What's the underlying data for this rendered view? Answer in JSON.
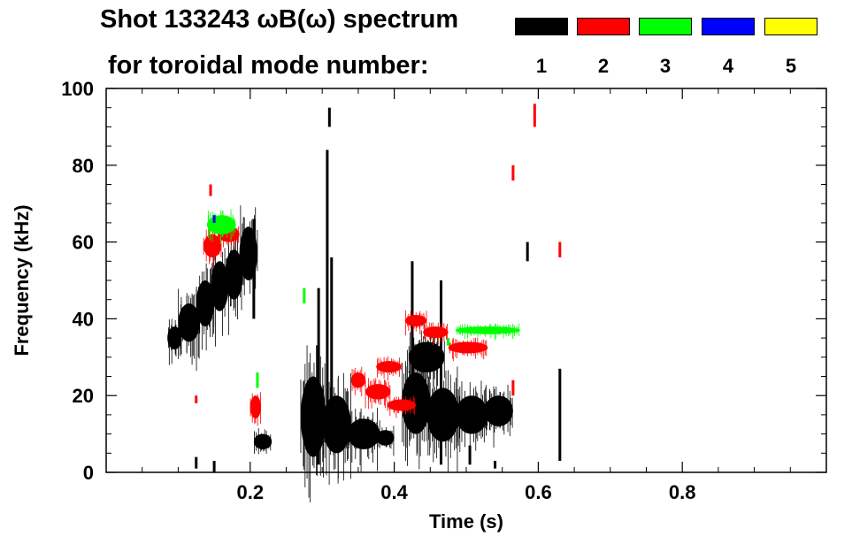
{
  "chart_data": {
    "type": "scatter",
    "title_line1": "Shot 133243 ωB(ω) spectrum",
    "title_line2": "for toroidal mode number:",
    "xlabel": "Time (s)",
    "ylabel": "Frequency (kHz)",
    "xlim": [
      0.0,
      1.0
    ],
    "ylim": [
      0,
      100
    ],
    "x_ticks": [
      0.2,
      0.4,
      0.6,
      0.8
    ],
    "x_tick_labels": [
      "0.2",
      "0.4",
      "0.6",
      "0.8"
    ],
    "y_ticks": [
      0,
      20,
      40,
      60,
      80,
      100
    ],
    "y_tick_labels": [
      "0",
      "20",
      "40",
      "60",
      "80",
      "100"
    ],
    "legend": [
      {
        "label": "1",
        "color": "#000000"
      },
      {
        "label": "2",
        "color": "#ff0000"
      },
      {
        "label": "3",
        "color": "#00ff00"
      },
      {
        "label": "4",
        "color": "#0000ff"
      },
      {
        "label": "5",
        "color": "#ffff00"
      }
    ],
    "series": [
      {
        "name": "n=1",
        "color": "#000000",
        "blobs": [
          {
            "t": [
              0.085,
              0.105
            ],
            "f": [
              32,
              38
            ]
          },
          {
            "t": [
              0.1,
              0.13
            ],
            "f": [
              34,
              44
            ]
          },
          {
            "t": [
              0.125,
              0.15
            ],
            "f": [
              38,
              50
            ]
          },
          {
            "t": [
              0.145,
              0.17
            ],
            "f": [
              42,
              55
            ]
          },
          {
            "t": [
              0.165,
              0.19
            ],
            "f": [
              45,
              58
            ]
          },
          {
            "t": [
              0.185,
              0.21
            ],
            "f": [
              50,
              64
            ]
          },
          {
            "t": [
              0.205,
              0.23
            ],
            "f": [
              6,
              10
            ]
          },
          {
            "t": [
              0.27,
              0.305
            ],
            "f": [
              4,
              25
            ]
          },
          {
            "t": [
              0.3,
              0.34
            ],
            "f": [
              5,
              20
            ]
          },
          {
            "t": [
              0.335,
              0.38
            ],
            "f": [
              6,
              14
            ]
          },
          {
            "t": [
              0.375,
              0.4
            ],
            "f": [
              7,
              11
            ]
          },
          {
            "t": [
              0.41,
              0.45
            ],
            "f": [
              10,
              26
            ]
          },
          {
            "t": [
              0.445,
              0.49
            ],
            "f": [
              8,
              22
            ]
          },
          {
            "t": [
              0.485,
              0.53
            ],
            "f": [
              10,
              20
            ]
          },
          {
            "t": [
              0.525,
              0.565
            ],
            "f": [
              12,
              20
            ]
          },
          {
            "t": [
              0.42,
              0.47
            ],
            "f": [
              26,
              34
            ]
          }
        ],
        "spikes": [
          {
            "t": 0.205,
            "f": [
              40,
              66
            ]
          },
          {
            "t": 0.295,
            "f": [
              2,
              48
            ]
          },
          {
            "t": 0.307,
            "f": [
              8,
              84
            ]
          },
          {
            "t": 0.313,
            "f": [
              18,
              56
            ]
          },
          {
            "t": 0.31,
            "f": [
              90,
              95
            ]
          },
          {
            "t": 0.425,
            "f": [
              20,
              55
            ]
          },
          {
            "t": 0.465,
            "f": [
              2,
              50
            ]
          },
          {
            "t": 0.585,
            "f": [
              55,
              60
            ]
          },
          {
            "t": 0.63,
            "f": [
              3,
              27
            ]
          },
          {
            "t": 0.125,
            "f": [
              1,
              4
            ]
          },
          {
            "t": 0.15,
            "f": [
              0,
              3
            ]
          },
          {
            "t": 0.505,
            "f": [
              2,
              7
            ]
          },
          {
            "t": 0.54,
            "f": [
              1,
              3
            ]
          }
        ]
      },
      {
        "name": "n=2",
        "color": "#ff0000",
        "blobs": [
          {
            "t": [
              0.135,
              0.16
            ],
            "f": [
              56,
              62
            ]
          },
          {
            "t": [
              0.155,
              0.185
            ],
            "f": [
              60,
              64
            ]
          },
          {
            "t": [
              0.2,
              0.215
            ],
            "f": [
              14,
              20
            ]
          },
          {
            "t": [
              0.34,
              0.36
            ],
            "f": [
              22,
              26
            ]
          },
          {
            "t": [
              0.36,
              0.395
            ],
            "f": [
              19,
              23
            ]
          },
          {
            "t": [
              0.39,
              0.43
            ],
            "f": [
              16,
              19
            ]
          },
          {
            "t": [
              0.375,
              0.41
            ],
            "f": [
              26,
              29
            ]
          },
          {
            "t": [
              0.415,
              0.445
            ],
            "f": [
              38,
              41
            ]
          },
          {
            "t": [
              0.44,
              0.475
            ],
            "f": [
              35,
              38
            ]
          },
          {
            "t": [
              0.475,
              0.53
            ],
            "f": [
              31,
              34
            ]
          }
        ],
        "spikes": [
          {
            "t": 0.595,
            "f": [
              90,
              96
            ]
          },
          {
            "t": 0.565,
            "f": [
              76,
              80
            ]
          },
          {
            "t": 0.63,
            "f": [
              56,
              60
            ]
          },
          {
            "t": 0.145,
            "f": [
              72,
              75
            ]
          },
          {
            "t": 0.125,
            "f": [
              18,
              20
            ]
          },
          {
            "t": 0.565,
            "f": [
              20,
              24
            ]
          }
        ]
      },
      {
        "name": "n=3",
        "color": "#00ff00",
        "blobs": [
          {
            "t": [
              0.14,
              0.18
            ],
            "f": [
              62,
              67
            ]
          },
          {
            "t": [
              0.485,
              0.575
            ],
            "f": [
              36,
              38
            ]
          }
        ],
        "spikes": [
          {
            "t": 0.275,
            "f": [
              44,
              48
            ]
          },
          {
            "t": 0.21,
            "f": [
              22,
              26
            ]
          },
          {
            "t": 0.475,
            "f": [
              33,
              35
            ]
          }
        ]
      },
      {
        "name": "n=4",
        "color": "#0000ff",
        "blobs": [],
        "spikes": [
          {
            "t": 0.15,
            "f": [
              65,
              67
            ]
          }
        ]
      },
      {
        "name": "n=5",
        "color": "#ffff00",
        "blobs": [],
        "spikes": []
      }
    ]
  }
}
